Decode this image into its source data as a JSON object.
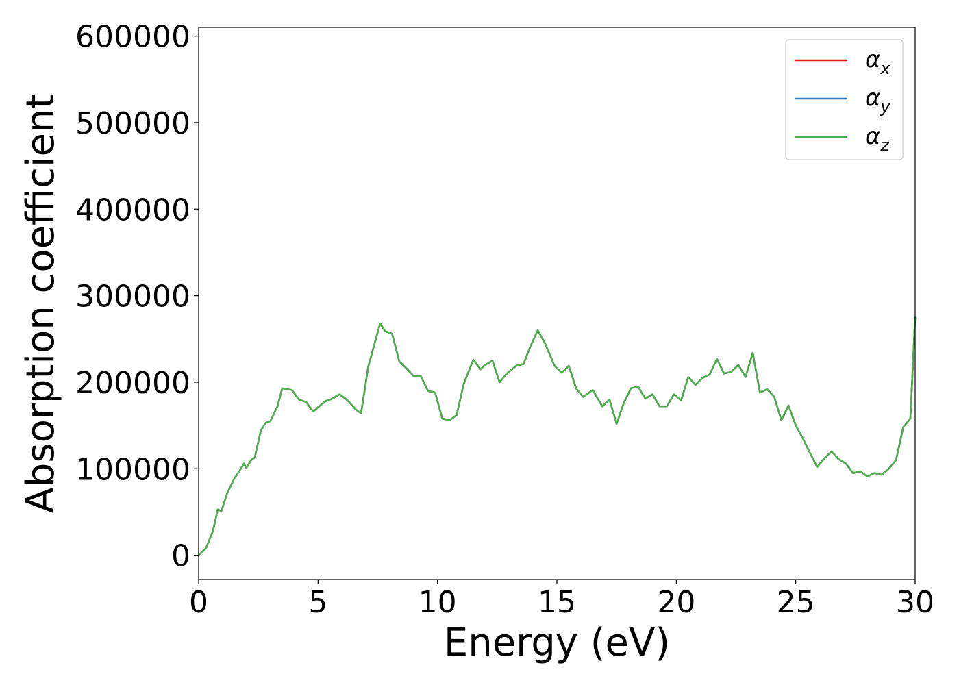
{
  "chart_data": {
    "type": "line",
    "title": "",
    "xlabel": "Energy (eV)",
    "ylabel": "Absorption coefficient",
    "xlim": [
      0,
      30
    ],
    "ylim": [
      -28000,
      610000
    ],
    "xticks": [
      0,
      5,
      10,
      15,
      20,
      25,
      30
    ],
    "xtick_labels": [
      "0",
      "5",
      "10",
      "15",
      "20",
      "25",
      "30"
    ],
    "yticks": [
      0,
      100000,
      200000,
      300000,
      400000,
      500000,
      600000
    ],
    "ytick_labels": [
      "0",
      "100000",
      "200000",
      "300000",
      "400000",
      "500000",
      "600000"
    ],
    "grid": false,
    "legend": {
      "placement": "top-right",
      "entries": [
        {
          "symbol": "α",
          "subscript": "x",
          "color": "#e41a1c"
        },
        {
          "symbol": "α",
          "subscript": "y",
          "color": "#377eb8"
        },
        {
          "symbol": "α",
          "subscript": "z",
          "color": "#4daf4a"
        }
      ]
    },
    "x": [
      0,
      0.3,
      0.6,
      0.8,
      0.95,
      1.2,
      1.5,
      1.7,
      1.9,
      2.0,
      2.2,
      2.35,
      2.6,
      2.8,
      3.0,
      3.3,
      3.5,
      3.7,
      3.9,
      4.2,
      4.5,
      4.8,
      5.0,
      5.3,
      5.6,
      5.9,
      6.2,
      6.6,
      6.8,
      7.1,
      7.4,
      7.6,
      7.8,
      8.1,
      8.4,
      8.7,
      9.0,
      9.3,
      9.6,
      9.9,
      10.2,
      10.5,
      10.8,
      11.1,
      11.5,
      11.8,
      12.0,
      12.3,
      12.6,
      12.9,
      13.3,
      13.6,
      13.9,
      14.2,
      14.5,
      14.9,
      15.2,
      15.5,
      15.8,
      16.1,
      16.5,
      16.9,
      17.2,
      17.5,
      17.8,
      18.1,
      18.4,
      18.7,
      19.0,
      19.3,
      19.6,
      19.9,
      20.2,
      20.5,
      20.8,
      21.1,
      21.4,
      21.7,
      22.0,
      22.3,
      22.6,
      22.9,
      23.2,
      23.5,
      23.8,
      24.1,
      24.4,
      24.7,
      25.0,
      25.3,
      25.6,
      25.9,
      26.2,
      26.5,
      26.8,
      27.1,
      27.4,
      27.7,
      28.0,
      28.3,
      28.6,
      28.9,
      29.2,
      29.5,
      29.8,
      30.0
    ],
    "series": [
      {
        "name": "α_x",
        "color": "#e41a1c",
        "values": [
          0,
          8000,
          28000,
          53000,
          51000,
          72000,
          89000,
          97000,
          106000,
          101000,
          110000,
          113000,
          144000,
          153000,
          155000,
          172000,
          193000,
          192000,
          191000,
          180000,
          177000,
          166000,
          171000,
          178000,
          181000,
          186000,
          180000,
          168000,
          164000,
          218000,
          248000,
          268000,
          259000,
          256000,
          224000,
          216000,
          207000,
          207000,
          190000,
          188000,
          158000,
          156000,
          162000,
          198000,
          226000,
          215000,
          220000,
          225000,
          200000,
          210000,
          219000,
          221000,
          242000,
          260000,
          245000,
          219000,
          211000,
          219000,
          193000,
          183000,
          191000,
          172000,
          180000,
          152000,
          176000,
          193000,
          195000,
          181000,
          186000,
          172000,
          172000,
          186000,
          179000,
          206000,
          197000,
          205000,
          209000,
          227000,
          210000,
          212000,
          220000,
          206000,
          234000,
          188000,
          192000,
          183000,
          156000,
          173000,
          150000,
          135000,
          118000,
          102000,
          112000,
          120000,
          111000,
          106000,
          95000,
          97000,
          91000,
          95000,
          93000,
          100000,
          110000,
          148000,
          158000,
          275000
        ]
      },
      {
        "name": "α_y",
        "color": "#377eb8",
        "values": [
          0,
          8000,
          28000,
          53000,
          51000,
          72000,
          89000,
          97000,
          106000,
          101000,
          110000,
          113000,
          144000,
          153000,
          155000,
          172000,
          193000,
          192000,
          191000,
          180000,
          177000,
          166000,
          171000,
          178000,
          181000,
          186000,
          180000,
          168000,
          164000,
          218000,
          248000,
          268000,
          259000,
          256000,
          224000,
          216000,
          207000,
          207000,
          190000,
          188000,
          158000,
          156000,
          162000,
          198000,
          226000,
          215000,
          220000,
          225000,
          200000,
          210000,
          219000,
          221000,
          242000,
          260000,
          245000,
          219000,
          211000,
          219000,
          193000,
          183000,
          191000,
          172000,
          180000,
          152000,
          176000,
          193000,
          195000,
          181000,
          186000,
          172000,
          172000,
          186000,
          179000,
          206000,
          197000,
          205000,
          209000,
          227000,
          210000,
          212000,
          220000,
          206000,
          234000,
          188000,
          192000,
          183000,
          156000,
          173000,
          150000,
          135000,
          118000,
          102000,
          112000,
          120000,
          111000,
          106000,
          95000,
          97000,
          91000,
          95000,
          93000,
          100000,
          110000,
          148000,
          158000,
          275000
        ]
      },
      {
        "name": "α_z",
        "color": "#4daf4a",
        "values": [
          0,
          8000,
          28000,
          53000,
          51000,
          72000,
          89000,
          97000,
          106000,
          101000,
          110000,
          113000,
          144000,
          153000,
          155000,
          172000,
          193000,
          192000,
          191000,
          180000,
          177000,
          166000,
          171000,
          178000,
          181000,
          186000,
          180000,
          168000,
          164000,
          218000,
          248000,
          268000,
          259000,
          256000,
          224000,
          216000,
          207000,
          207000,
          190000,
          188000,
          158000,
          156000,
          162000,
          198000,
          226000,
          215000,
          220000,
          225000,
          200000,
          210000,
          219000,
          221000,
          242000,
          260000,
          245000,
          219000,
          211000,
          219000,
          193000,
          183000,
          191000,
          172000,
          180000,
          152000,
          176000,
          193000,
          195000,
          181000,
          186000,
          172000,
          172000,
          186000,
          179000,
          206000,
          197000,
          205000,
          209000,
          227000,
          210000,
          212000,
          220000,
          206000,
          234000,
          188000,
          192000,
          183000,
          156000,
          173000,
          150000,
          135000,
          118000,
          102000,
          112000,
          120000,
          111000,
          106000,
          95000,
          97000,
          91000,
          95000,
          93000,
          100000,
          110000,
          148000,
          158000,
          275000
        ]
      }
    ]
  }
}
